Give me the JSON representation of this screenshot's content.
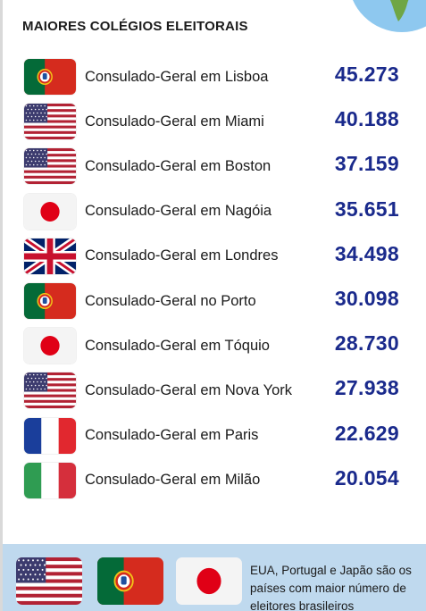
{
  "title": "MAIORES COLÉGIOS ELEITORAIS",
  "rows": [
    {
      "flag": "portugal-flag",
      "name": "Consulado-Geral em Lisboa",
      "value": "45.273"
    },
    {
      "flag": "usa-flag",
      "name": "Consulado-Geral em Miami",
      "value": "40.188"
    },
    {
      "flag": "usa-flag",
      "name": "Consulado-Geral em Boston",
      "value": "37.159"
    },
    {
      "flag": "japan-flag",
      "name": "Consulado-Geral em Nagóia",
      "value": "35.651"
    },
    {
      "flag": "uk-flag",
      "name": "Consulado-Geral em Londres",
      "value": "34.498"
    },
    {
      "flag": "portugal-flag",
      "name": "Consulado-Geral no Porto",
      "value": "30.098"
    },
    {
      "flag": "japan-flag",
      "name": "Consulado-Geral em Tóquio",
      "value": "28.730"
    },
    {
      "flag": "usa-flag",
      "name": "Consulado-Geral em Nova York",
      "value": "27.938"
    },
    {
      "flag": "france-flag",
      "name": "Consulado-Geral em Paris",
      "value": "22.629"
    },
    {
      "flag": "italy-flag",
      "name": "Consulado-Geral em Milão",
      "value": "20.054"
    }
  ],
  "footer": {
    "text": "EUA, Portugal e Japão são os países com maior número de eleitores brasileiros",
    "flags": [
      "usa-flag",
      "portugal-flag",
      "japan-flag"
    ]
  },
  "colors": {
    "value": "#1a2a8c",
    "footer_bg": "#bfd9ee",
    "globe_ocean": "#8ec8ef",
    "globe_land": "#6fa645"
  }
}
